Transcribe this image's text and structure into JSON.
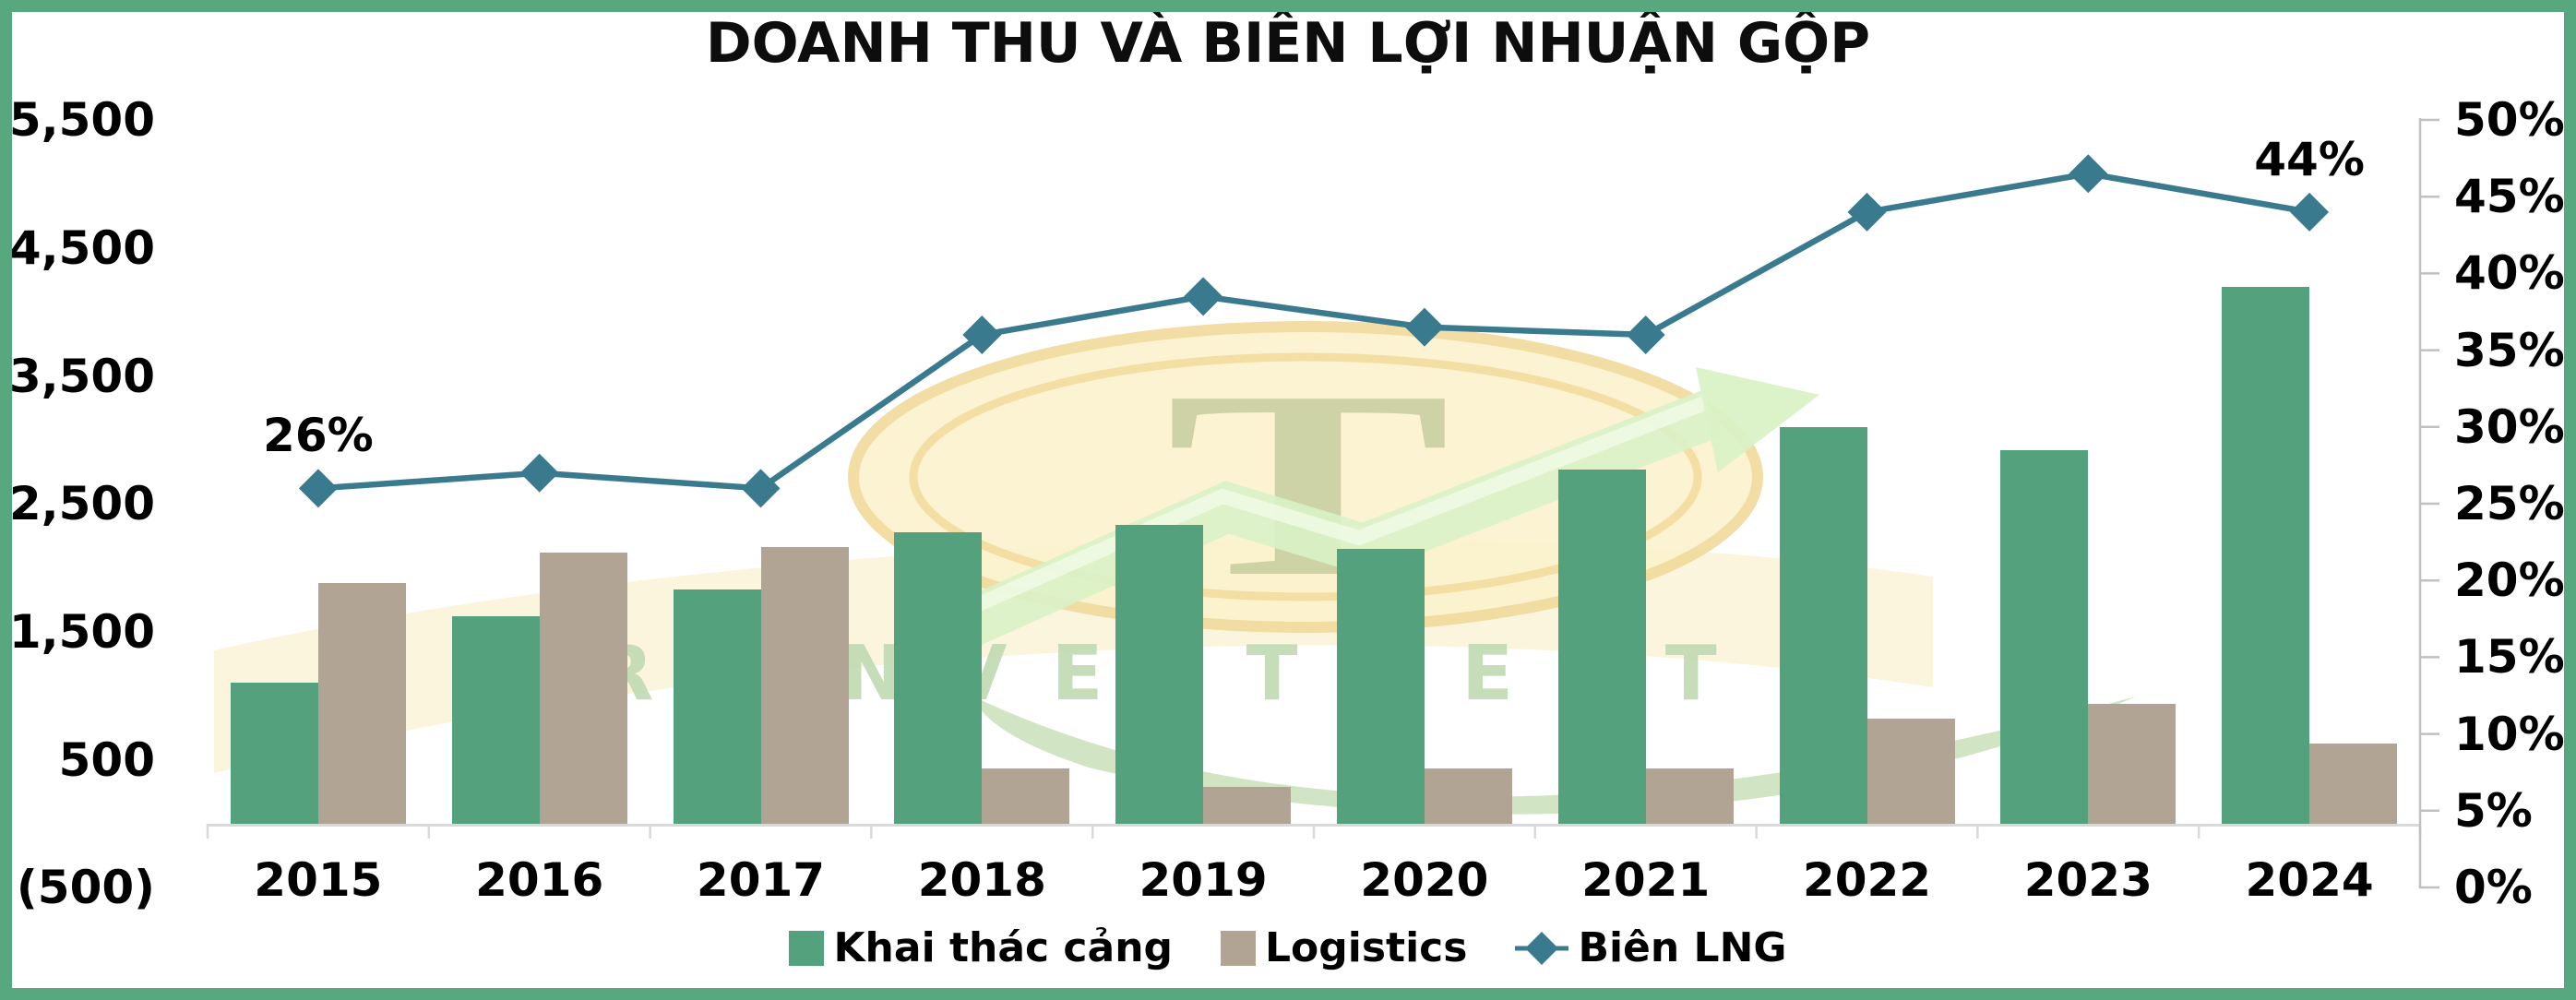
{
  "title": "DOANH THU VÀ BIÊN LỢI NHUẬN GỘP",
  "watermark": {
    "monogram": "T",
    "text": "TR INVESTMENT"
  },
  "chart_data": {
    "type": "bar",
    "subtype": "grouped-bars-with-line",
    "title": "DOANH THU VÀ BIÊN LỢI NHUẬN GỘP",
    "categories": [
      "2015",
      "2016",
      "2017",
      "2018",
      "2019",
      "2020",
      "2021",
      "2022",
      "2023",
      "2024"
    ],
    "series": [
      {
        "name": "Khai thác cảng",
        "type": "bar",
        "axis": "left",
        "color": "#54a17d",
        "values": [
          1100,
          1620,
          1830,
          2280,
          2340,
          2150,
          2770,
          3100,
          2920,
          4200
        ]
      },
      {
        "name": "Logistics",
        "type": "bar",
        "axis": "left",
        "color": "#b1a494",
        "values": [
          1880,
          2120,
          2160,
          430,
          290,
          430,
          430,
          820,
          940,
          630
        ]
      },
      {
        "name": "Biên LNG",
        "type": "line",
        "axis": "right",
        "color": "#3a7a8e",
        "unit": "%",
        "values": [
          26,
          27,
          26,
          36,
          38.5,
          36.5,
          36,
          44,
          46.5,
          44
        ]
      }
    ],
    "left_axis": {
      "min": -500,
      "max": 5500,
      "step": 1000,
      "tick_labels": [
        "5,500",
        "4,500",
        "3,500",
        "2,500",
        "1,500",
        "500",
        "(500)"
      ]
    },
    "right_axis": {
      "min": 0,
      "max": 50,
      "step": 5,
      "tick_labels": [
        "50%",
        "45%",
        "40%",
        "35%",
        "30%",
        "25%",
        "20%",
        "15%",
        "10%",
        "5%",
        "0%"
      ]
    },
    "annotations": [
      {
        "category": "2015",
        "series": "Biên LNG",
        "text": "26%"
      },
      {
        "category": "2024",
        "series": "Biên LNG",
        "text": "44%"
      }
    ],
    "legend": {
      "position": "bottom",
      "items": [
        "Khai thác cảng",
        "Logistics",
        "Biên LNG"
      ]
    },
    "grid": false
  },
  "colors": {
    "border": "#57a87e",
    "x_axis_line": "#d9d9d9",
    "right_axis_line": "#c0c0c0",
    "text": "#000000",
    "wm_coin_fill": "#fbf2cd",
    "wm_coin_ring": "#f1da9b",
    "wm_ribbon": "#f7ecc2",
    "wm_arrow": "#d9f2c6",
    "wm_arrow_hi": "#eefae2",
    "wm_swoosh": "#c9dfb8",
    "wm_text": "#c0dab2",
    "wm_monogram": "#a9ba85"
  }
}
